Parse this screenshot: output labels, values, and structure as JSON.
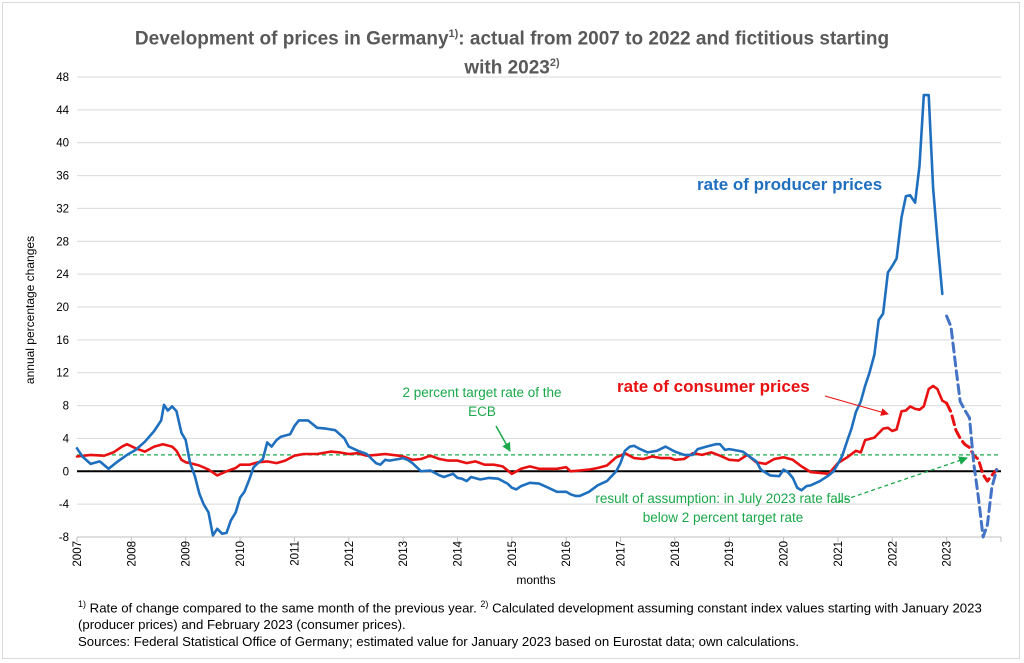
{
  "title_main": "Development of prices in Germany",
  "title_sup1": "1)",
  "title_mid": ": actual from 2007 to 2022 and fictitious starting",
  "title_line2": "with 2023",
  "title_sup2": "2)",
  "footnotes": {
    "sup1": "1)",
    "text1": " Rate of change compared to the same month of the previous year. ",
    "sup2": "2)",
    "text2": " Calculated development assuming constant index values starting with January 2023 (producer prices) and February 2023 (consumer prices).",
    "sources": "Sources: Federal Statistical Office of Germany; estimated value for January 2023 based on Eurostat data; own calculations."
  },
  "annotations": {
    "producer": "rate of producer prices",
    "consumer": "rate of consumer prices",
    "ecb": "2 percent target rate of the ECB",
    "assumption": "result of assumption: in July 2023 rate falls below 2 percent target rate"
  },
  "colors": {
    "producer": "#1f6fbf",
    "producer_dashed": "#4472c4",
    "consumer": "#e81010",
    "target": "#1aa84a",
    "zero": "#000000",
    "grid": "#d9d9d9"
  },
  "chart_data": {
    "type": "line",
    "title": "Development of prices in Germany: actual from 2007 to 2022 and fictitious starting with 2023",
    "xlabel": "months",
    "ylabel": "annual percentage changes",
    "xlim": [
      2007,
      2024
    ],
    "ylim": [
      -8,
      48
    ],
    "y_ticks": [
      -8,
      -4,
      0,
      4,
      8,
      12,
      16,
      20,
      24,
      28,
      32,
      36,
      40,
      44,
      48
    ],
    "x_tick_labels": [
      "2007",
      "2008",
      "2009",
      "2010",
      "2011",
      "2012",
      "2013",
      "2014",
      "2015",
      "2016",
      "2017",
      "2018",
      "2019",
      "2020",
      "2021",
      "2022",
      "2023"
    ],
    "grid": "horizontal",
    "target_rate": 2,
    "series": [
      {
        "name": "rate of producer prices",
        "style": "solid",
        "points": [
          [
            2007.0,
            2.8
          ],
          [
            2007.1,
            1.8
          ],
          [
            2007.25,
            0.9
          ],
          [
            2007.42,
            1.2
          ],
          [
            2007.58,
            0.3
          ],
          [
            2007.75,
            1.2
          ],
          [
            2007.92,
            2.0
          ],
          [
            2008.08,
            2.6
          ],
          [
            2008.25,
            3.6
          ],
          [
            2008.42,
            4.9
          ],
          [
            2008.55,
            6.2
          ],
          [
            2008.6,
            8.1
          ],
          [
            2008.67,
            7.4
          ],
          [
            2008.75,
            7.9
          ],
          [
            2008.83,
            7.3
          ],
          [
            2008.92,
            4.7
          ],
          [
            2009.0,
            3.8
          ],
          [
            2009.08,
            1.0
          ],
          [
            2009.17,
            -0.6
          ],
          [
            2009.25,
            -2.7
          ],
          [
            2009.33,
            -4.0
          ],
          [
            2009.42,
            -5.0
          ],
          [
            2009.5,
            -7.8
          ],
          [
            2009.58,
            -7.0
          ],
          [
            2009.67,
            -7.6
          ],
          [
            2009.75,
            -7.5
          ],
          [
            2009.83,
            -6.0
          ],
          [
            2009.92,
            -5.0
          ],
          [
            2010.0,
            -3.2
          ],
          [
            2010.08,
            -2.5
          ],
          [
            2010.17,
            -1.0
          ],
          [
            2010.25,
            0.5
          ],
          [
            2010.33,
            1.0
          ],
          [
            2010.42,
            1.5
          ],
          [
            2010.5,
            3.5
          ],
          [
            2010.58,
            3.0
          ],
          [
            2010.67,
            3.8
          ],
          [
            2010.75,
            4.2
          ],
          [
            2010.92,
            4.5
          ],
          [
            2011.0,
            5.5
          ],
          [
            2011.08,
            6.2
          ],
          [
            2011.25,
            6.2
          ],
          [
            2011.42,
            5.3
          ],
          [
            2011.58,
            5.2
          ],
          [
            2011.75,
            5.0
          ],
          [
            2011.92,
            4.0
          ],
          [
            2012.0,
            3.0
          ],
          [
            2012.17,
            2.5
          ],
          [
            2012.33,
            2.1
          ],
          [
            2012.5,
            1.0
          ],
          [
            2012.58,
            0.8
          ],
          [
            2012.67,
            1.4
          ],
          [
            2012.75,
            1.3
          ],
          [
            2012.92,
            1.5
          ],
          [
            2013.0,
            1.6
          ],
          [
            2013.08,
            1.4
          ],
          [
            2013.17,
            1.0
          ],
          [
            2013.33,
            0.0
          ],
          [
            2013.5,
            0.1
          ],
          [
            2013.67,
            -0.5
          ],
          [
            2013.75,
            -0.7
          ],
          [
            2013.92,
            -0.3
          ],
          [
            2014.0,
            -0.8
          ],
          [
            2014.08,
            -0.9
          ],
          [
            2014.17,
            -1.2
          ],
          [
            2014.25,
            -0.7
          ],
          [
            2014.42,
            -1.0
          ],
          [
            2014.58,
            -0.8
          ],
          [
            2014.75,
            -0.9
          ],
          [
            2014.92,
            -1.5
          ],
          [
            2015.0,
            -2.0
          ],
          [
            2015.08,
            -2.2
          ],
          [
            2015.17,
            -1.8
          ],
          [
            2015.33,
            -1.4
          ],
          [
            2015.5,
            -1.5
          ],
          [
            2015.67,
            -2.0
          ],
          [
            2015.83,
            -2.5
          ],
          [
            2016.0,
            -2.5
          ],
          [
            2016.08,
            -2.8
          ],
          [
            2016.17,
            -3.0
          ],
          [
            2016.25,
            -3.0
          ],
          [
            2016.42,
            -2.5
          ],
          [
            2016.58,
            -1.7
          ],
          [
            2016.75,
            -1.2
          ],
          [
            2016.92,
            0.0
          ],
          [
            2017.0,
            1.0
          ],
          [
            2017.08,
            2.5
          ],
          [
            2017.17,
            3.0
          ],
          [
            2017.25,
            3.1
          ],
          [
            2017.33,
            2.8
          ],
          [
            2017.5,
            2.3
          ],
          [
            2017.67,
            2.5
          ],
          [
            2017.83,
            3.0
          ],
          [
            2018.0,
            2.4
          ],
          [
            2018.17,
            2.0
          ],
          [
            2018.33,
            2.0
          ],
          [
            2018.42,
            2.7
          ],
          [
            2018.58,
            3.0
          ],
          [
            2018.75,
            3.3
          ],
          [
            2018.83,
            3.3
          ],
          [
            2018.92,
            2.6
          ],
          [
            2019.0,
            2.7
          ],
          [
            2019.08,
            2.6
          ],
          [
            2019.25,
            2.4
          ],
          [
            2019.33,
            2.0
          ],
          [
            2019.5,
            1.2
          ],
          [
            2019.58,
            0.2
          ],
          [
            2019.75,
            -0.5
          ],
          [
            2019.92,
            -0.6
          ],
          [
            2020.0,
            0.2
          ],
          [
            2020.08,
            -0.1
          ],
          [
            2020.17,
            -0.8
          ],
          [
            2020.25,
            -2.0
          ],
          [
            2020.33,
            -2.3
          ],
          [
            2020.42,
            -1.8
          ],
          [
            2020.5,
            -1.7
          ],
          [
            2020.67,
            -1.2
          ],
          [
            2020.83,
            -0.5
          ],
          [
            2020.92,
            0.0
          ],
          [
            2021.0,
            0.9
          ],
          [
            2021.08,
            1.9
          ],
          [
            2021.17,
            3.7
          ],
          [
            2021.25,
            5.2
          ],
          [
            2021.33,
            7.2
          ],
          [
            2021.42,
            8.5
          ],
          [
            2021.5,
            10.4
          ],
          [
            2021.58,
            12.0
          ],
          [
            2021.67,
            14.2
          ],
          [
            2021.75,
            18.4
          ],
          [
            2021.83,
            19.2
          ],
          [
            2021.92,
            24.2
          ],
          [
            2022.0,
            25.0
          ],
          [
            2022.08,
            25.9
          ],
          [
            2022.17,
            30.9
          ],
          [
            2022.25,
            33.5
          ],
          [
            2022.33,
            33.6
          ],
          [
            2022.42,
            32.7
          ],
          [
            2022.5,
            37.2
          ],
          [
            2022.58,
            45.8
          ],
          [
            2022.67,
            45.8
          ],
          [
            2022.75,
            34.5
          ],
          [
            2022.83,
            28.2
          ],
          [
            2022.92,
            21.6
          ]
        ]
      },
      {
        "name": "rate of producer prices",
        "style": "dashed",
        "points": [
          [
            2023.0,
            18.9
          ],
          [
            2023.08,
            17.6
          ],
          [
            2023.17,
            12.6
          ],
          [
            2023.25,
            8.5
          ],
          [
            2023.33,
            7.5
          ],
          [
            2023.42,
            6.5
          ],
          [
            2023.5,
            0.9
          ],
          [
            2023.58,
            -3.0
          ],
          [
            2023.67,
            -8.0
          ],
          [
            2023.75,
            -6.5
          ],
          [
            2023.83,
            -2.0
          ],
          [
            2023.92,
            0.2
          ]
        ]
      },
      {
        "name": "rate of consumer prices",
        "style": "solid",
        "points": [
          [
            2007.0,
            1.8
          ],
          [
            2007.25,
            2.0
          ],
          [
            2007.5,
            1.9
          ],
          [
            2007.67,
            2.3
          ],
          [
            2007.83,
            3.0
          ],
          [
            2007.92,
            3.3
          ],
          [
            2008.08,
            2.8
          ],
          [
            2008.25,
            2.4
          ],
          [
            2008.42,
            3.0
          ],
          [
            2008.58,
            3.3
          ],
          [
            2008.75,
            3.0
          ],
          [
            2008.83,
            2.5
          ],
          [
            2008.92,
            1.4
          ],
          [
            2009.0,
            1.1
          ],
          [
            2009.08,
            1.0
          ],
          [
            2009.25,
            0.7
          ],
          [
            2009.42,
            0.2
          ],
          [
            2009.58,
            -0.5
          ],
          [
            2009.75,
            0.0
          ],
          [
            2009.92,
            0.4
          ],
          [
            2010.0,
            0.8
          ],
          [
            2010.17,
            0.8
          ],
          [
            2010.33,
            1.1
          ],
          [
            2010.5,
            1.2
          ],
          [
            2010.67,
            1.0
          ],
          [
            2010.83,
            1.3
          ],
          [
            2011.0,
            1.9
          ],
          [
            2011.17,
            2.1
          ],
          [
            2011.42,
            2.1
          ],
          [
            2011.67,
            2.4
          ],
          [
            2011.83,
            2.3
          ],
          [
            2012.0,
            2.1
          ],
          [
            2012.17,
            2.2
          ],
          [
            2012.33,
            1.9
          ],
          [
            2012.5,
            2.0
          ],
          [
            2012.67,
            2.1
          ],
          [
            2012.92,
            1.9
          ],
          [
            2013.0,
            1.8
          ],
          [
            2013.17,
            1.4
          ],
          [
            2013.33,
            1.5
          ],
          [
            2013.5,
            1.9
          ],
          [
            2013.67,
            1.5
          ],
          [
            2013.83,
            1.3
          ],
          [
            2014.0,
            1.3
          ],
          [
            2014.17,
            1.0
          ],
          [
            2014.33,
            1.2
          ],
          [
            2014.5,
            0.8
          ],
          [
            2014.67,
            0.8
          ],
          [
            2014.83,
            0.6
          ],
          [
            2015.0,
            -0.3
          ],
          [
            2015.17,
            0.3
          ],
          [
            2015.33,
            0.6
          ],
          [
            2015.5,
            0.3
          ],
          [
            2015.67,
            0.3
          ],
          [
            2015.83,
            0.3
          ],
          [
            2016.0,
            0.5
          ],
          [
            2016.08,
            0.0
          ],
          [
            2016.25,
            0.1
          ],
          [
            2016.42,
            0.2
          ],
          [
            2016.58,
            0.4
          ],
          [
            2016.75,
            0.7
          ],
          [
            2016.92,
            1.7
          ],
          [
            2017.0,
            1.9
          ],
          [
            2017.08,
            2.2
          ],
          [
            2017.25,
            1.6
          ],
          [
            2017.42,
            1.5
          ],
          [
            2017.58,
            1.8
          ],
          [
            2017.75,
            1.6
          ],
          [
            2017.92,
            1.6
          ],
          [
            2018.0,
            1.4
          ],
          [
            2018.17,
            1.5
          ],
          [
            2018.33,
            2.2
          ],
          [
            2018.5,
            2.0
          ],
          [
            2018.67,
            2.3
          ],
          [
            2018.83,
            1.9
          ],
          [
            2019.0,
            1.4
          ],
          [
            2019.17,
            1.3
          ],
          [
            2019.33,
            2.0
          ],
          [
            2019.5,
            1.1
          ],
          [
            2019.67,
            0.9
          ],
          [
            2019.83,
            1.5
          ],
          [
            2020.0,
            1.7
          ],
          [
            2020.17,
            1.4
          ],
          [
            2020.33,
            0.6
          ],
          [
            2020.5,
            -0.1
          ],
          [
            2020.67,
            -0.2
          ],
          [
            2020.83,
            -0.3
          ],
          [
            2021.0,
            1.0
          ],
          [
            2021.17,
            1.7
          ],
          [
            2021.33,
            2.5
          ],
          [
            2021.42,
            2.3
          ],
          [
            2021.5,
            3.8
          ],
          [
            2021.67,
            4.1
          ],
          [
            2021.83,
            5.2
          ],
          [
            2021.92,
            5.3
          ],
          [
            2022.0,
            4.9
          ],
          [
            2022.08,
            5.1
          ],
          [
            2022.17,
            7.3
          ],
          [
            2022.25,
            7.4
          ],
          [
            2022.33,
            7.9
          ],
          [
            2022.42,
            7.6
          ],
          [
            2022.5,
            7.5
          ],
          [
            2022.58,
            7.9
          ],
          [
            2022.67,
            10.0
          ],
          [
            2022.75,
            10.4
          ],
          [
            2022.83,
            10.0
          ],
          [
            2022.92,
            8.6
          ],
          [
            2023.0,
            8.3
          ]
        ]
      },
      {
        "name": "rate of consumer prices",
        "style": "dashed",
        "points": [
          [
            2023.0,
            8.3
          ],
          [
            2023.08,
            7.2
          ],
          [
            2023.17,
            5.0
          ],
          [
            2023.25,
            4.0
          ],
          [
            2023.33,
            3.3
          ],
          [
            2023.42,
            2.9
          ],
          [
            2023.5,
            1.9
          ],
          [
            2023.58,
            1.5
          ],
          [
            2023.67,
            -0.4
          ],
          [
            2023.75,
            -1.2
          ],
          [
            2023.83,
            -0.5
          ],
          [
            2023.92,
            0.2
          ]
        ]
      }
    ]
  }
}
